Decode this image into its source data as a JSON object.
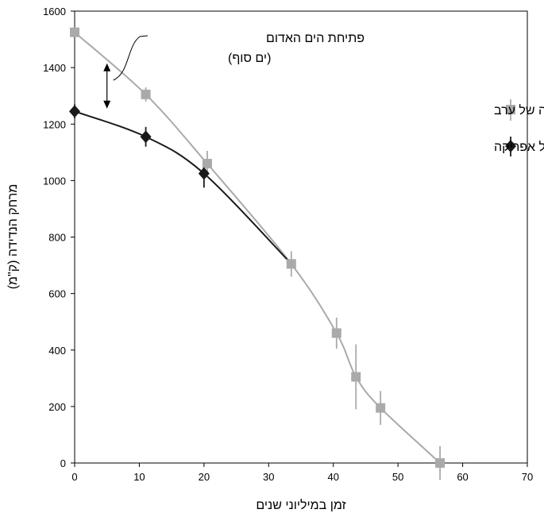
{
  "chart_data": {
    "type": "scatter",
    "xlabel": "זמן במיליוני שנים",
    "ylabel": "מרחק הנדידה (ק\"מ)",
    "xlim": [
      0,
      70
    ],
    "ylim": [
      0,
      1600
    ],
    "xticks": [
      0,
      10,
      20,
      30,
      40,
      50,
      60,
      70
    ],
    "yticks": [
      0,
      200,
      400,
      600,
      800,
      1000,
      1200,
      1400,
      1600
    ],
    "grid": false,
    "legend_position": "right",
    "series": [
      {
        "name": "מיקומה של ערב",
        "marker": "square",
        "color": "#aaaaaa",
        "x": [
          0,
          11,
          20.5,
          33.5,
          40.5,
          43.5,
          47.3,
          56.5
        ],
        "y": [
          1525,
          1305,
          1060,
          705,
          460,
          305,
          195,
          0
        ],
        "err": [
          0,
          25,
          45,
          45,
          55,
          115,
          60,
          60
        ]
      },
      {
        "name": "מיקומה של אפריקה",
        "marker": "diamond",
        "color": "#1a1a1a",
        "x": [
          0,
          11,
          20
        ],
        "y": [
          1245,
          1155,
          1025
        ],
        "err": [
          25,
          35,
          50
        ]
      }
    ],
    "annotations": [
      {
        "text_line1": "פתיחת הים האדום",
        "text_line2": "(ים סוף)",
        "x": 5,
        "y_from": 1255,
        "y_to": 1415
      }
    ]
  }
}
